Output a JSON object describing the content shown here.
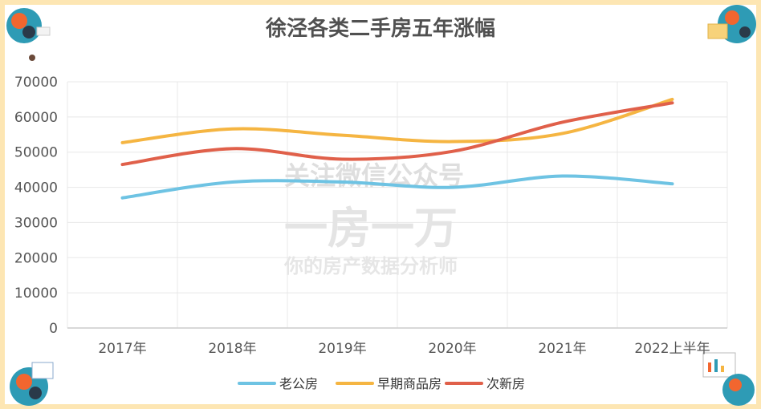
{
  "chart_data": {
    "type": "line",
    "title": "徐泾各类二手房五年涨幅",
    "categories": [
      "2017年",
      "2018年",
      "2019年",
      "2020年",
      "2021年",
      "2022上半年"
    ],
    "ylim": [
      0,
      70000
    ],
    "yticks": [
      "0",
      "10000",
      "20000",
      "30000",
      "40000",
      "50000",
      "60000",
      "70000"
    ],
    "grid": true,
    "legend_position": "bottom",
    "series": [
      {
        "name": "老公房",
        "color": "#6ec3e3",
        "values": [
          37000,
          41500,
          41500,
          40000,
          43200,
          41000
        ]
      },
      {
        "name": "早期商品房",
        "color": "#f5b542",
        "values": [
          52700,
          56600,
          54800,
          53000,
          55300,
          65000
        ]
      },
      {
        "name": "次新房",
        "color": "#e0604a",
        "values": [
          46500,
          51000,
          48000,
          50200,
          58500,
          64000
        ]
      }
    ]
  },
  "watermark": {
    "line1": "关注微信公众号",
    "line2": "一房一万",
    "line3": "你的房产数据分析师"
  },
  "colors": {
    "frame": "#fde6b3",
    "grid": "#e8e8e8"
  }
}
